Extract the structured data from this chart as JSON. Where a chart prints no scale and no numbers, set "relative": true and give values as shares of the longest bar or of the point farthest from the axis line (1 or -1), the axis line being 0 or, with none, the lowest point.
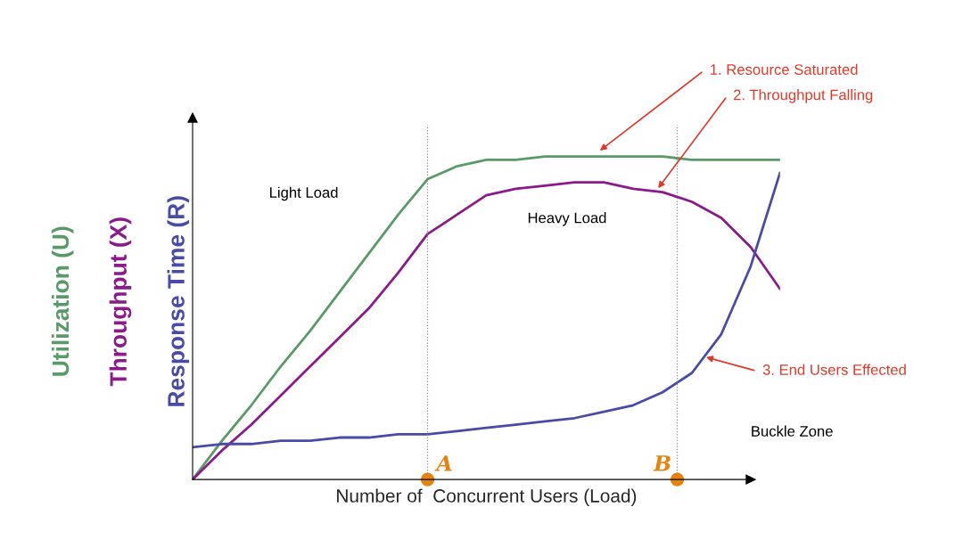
{
  "chart_data": {
    "type": "line",
    "relative": true,
    "xlabel": "Number of  Concurrent Users (Load)",
    "categories": [
      null,
      null,
      null,
      null,
      null,
      null,
      null,
      null,
      null,
      null,
      null,
      null,
      null,
      null,
      null,
      null,
      null,
      null,
      null,
      null,
      null
    ],
    "series": [
      {
        "name": "Utilization (U)",
        "color": "#5a9a68",
        "values": [
          0,
          0.12,
          0.23,
          0.35,
          0.46,
          0.58,
          0.7,
          0.82,
          0.93,
          0.97,
          0.99,
          0.99,
          1.0,
          1.0,
          1.0,
          1.0,
          1.0,
          0.99,
          0.99,
          0.99,
          0.99
        ]
      },
      {
        "name": "Throughput (X)",
        "color": "#8b1a8b",
        "values": [
          0,
          0.09,
          0.17,
          0.26,
          0.35,
          0.44,
          0.53,
          0.64,
          0.76,
          0.82,
          0.88,
          0.9,
          0.91,
          0.92,
          0.92,
          0.9,
          0.89,
          0.86,
          0.81,
          0.72,
          0.59
        ]
      },
      {
        "name": "Response Time (R)",
        "color": "#4a4aa8",
        "values": [
          0.1,
          0.11,
          0.11,
          0.12,
          0.12,
          0.13,
          0.13,
          0.14,
          0.14,
          0.15,
          0.16,
          0.17,
          0.18,
          0.19,
          0.21,
          0.23,
          0.27,
          0.33,
          0.45,
          0.66,
          0.95
        ]
      }
    ],
    "annotations": [
      "1. Resource Saturated",
      "2. Throughput Falling",
      "3. End Users Effected",
      "Light Load",
      "Heavy Load",
      "Buckle Zone",
      "A",
      "B"
    ],
    "grid": false,
    "legend": false
  }
}
